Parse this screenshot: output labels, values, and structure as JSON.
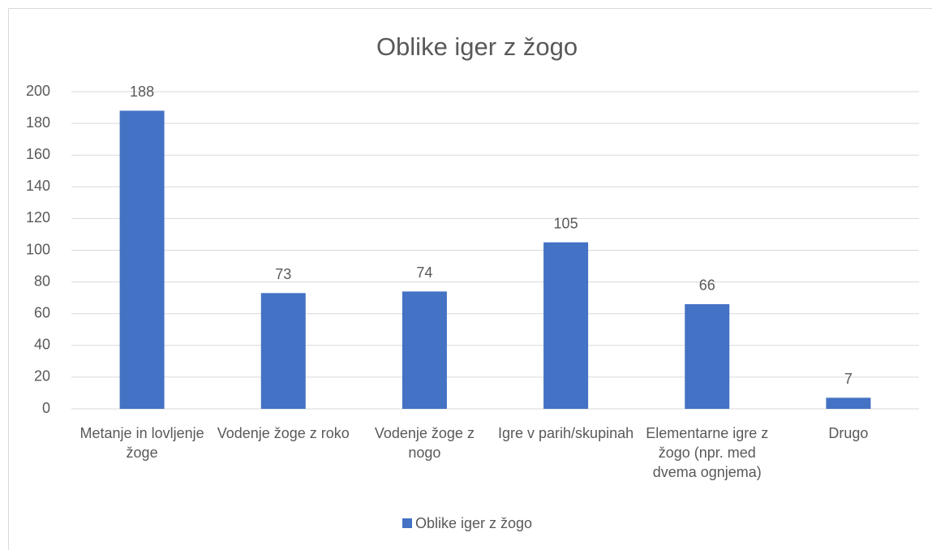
{
  "chart_data": {
    "type": "bar",
    "title": "Oblike iger z žogo",
    "categories": [
      "Metanje in lovljenje žoge",
      "Vodenje žoge z roko",
      "Vodenje žoge z nogo",
      "Igre v parih/skupinah",
      "Elementarne igre z žogo (npr. med dvema ognjema)",
      "Drugo"
    ],
    "series": [
      {
        "name": "Oblike iger z žogo",
        "color": "#4472c4",
        "values": [
          188,
          73,
          74,
          105,
          66,
          7
        ]
      }
    ],
    "ylim": [
      0,
      200
    ],
    "yticks": [
      0,
      20,
      40,
      60,
      80,
      100,
      120,
      140,
      160,
      180,
      200
    ],
    "grid": true,
    "legend": "bottom"
  }
}
